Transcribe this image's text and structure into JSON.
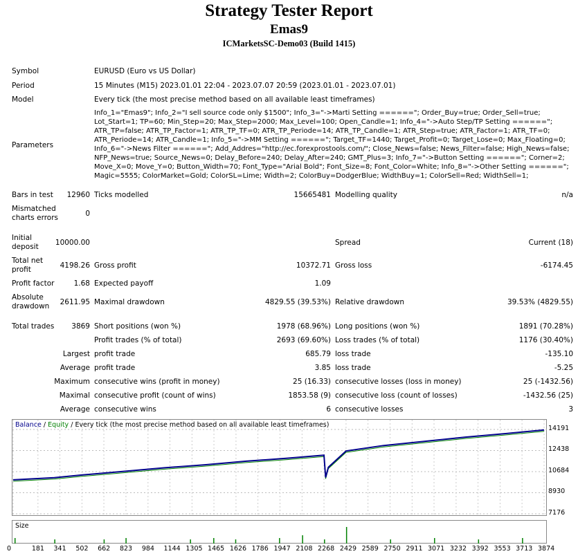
{
  "header": {
    "title": "Strategy Tester Report",
    "expert": "Emas9",
    "server": "ICMarketsSC-Demo03 (Build 1415)"
  },
  "info": {
    "symbol_label": "Symbol",
    "symbol_value": "EURUSD (Euro vs US Dollar)",
    "period_label": "Period",
    "period_value": "15 Minutes (M15) 2023.01.01 22:04 - 2023.07.07 20:59 (2023.01.01 - 2023.07.01)",
    "model_label": "Model",
    "model_value": "Every tick (the most precise method based on all available least timeframes)",
    "parameters_label": "Parameters",
    "parameters_value": "Info_1=\"Emas9\"; Info_2=\"I sell source code only $1500\"; Info_3=\"->Marti Setting ======\"; Order_Buy=true; Order_Sell=true; Lot_Start=1; TP=60; Min_Step=20; Max_Step=2000; Max_Level=100; Open_Candle=1; Info_4=\"->Auto Step/TP Setting ======\"; ATR_TP=false; ATR_TP_Factor=1; ATR_TP_TF=0; ATR_TP_Periode=14; ATR_TP_Candle=1; ATR_Step=true; ATR_Factor=1; ATR_TF=0; ATR_Periode=14; ATR_Candle=1; Info_5=\"->MM Setting ======\"; Target_TF=1440; Target_Profit=0; Target_Lose=0; Max_Floating=0; Info_6=\"->News Filter ======\"; Add_Addres=\"http://ec.forexprostools.com/\"; Close_News=false; News_Filter=false; High_News=false; NFP_News=true; Source_News=0; Delay_Before=240; Delay_After=240; GMT_Plus=3; Info_7=\"->Button Setting ======\"; Corner=2; Move_X=0; Move_Y=0; Button_Width=70; Font_Type=\"Arial Bold\"; Font_Size=8; Font_Color=White; Info_8=\"->Other Setting ======\"; Magic=5555; ColorMarket=Gold; ColorSL=Lime; Width=2; ColorBuy=DodgerBlue; WidthBuy=1; ColorSell=Red; WidthSell=1;"
  },
  "stats": {
    "bars_label": "Bars in test",
    "bars_value": "12960",
    "ticks_label": "Ticks modelled",
    "ticks_value": "15665481",
    "quality_label": "Modelling quality",
    "quality_value": "n/a",
    "mismatch_label": "Mismatched charts errors",
    "mismatch_value": "0",
    "deposit_label": "Initial deposit",
    "deposit_value": "10000.00",
    "spread_label": "Spread",
    "spread_value": "Current (18)",
    "netprofit_label": "Total net profit",
    "netprofit_value": "4198.26",
    "grossprofit_label": "Gross profit",
    "grossprofit_value": "10372.71",
    "grossloss_label": "Gross loss",
    "grossloss_value": "-6174.45",
    "pf_label": "Profit factor",
    "pf_value": "1.68",
    "ep_label": "Expected payoff",
    "ep_value": "1.09",
    "absdd_label": "Absolute drawdown",
    "absdd_value": "2611.95",
    "maxdd_label": "Maximal drawdown",
    "maxdd_value": "4829.55 (39.53%)",
    "reldd_label": "Relative drawdown",
    "reldd_value": "39.53% (4829.55)",
    "trades_label": "Total trades",
    "trades_value": "3869",
    "short_label": "Short positions (won %)",
    "short_value": "1978 (68.96%)",
    "long_label": "Long positions (won %)",
    "long_value": "1891 (70.28%)",
    "ptrades_label": "Profit trades (% of total)",
    "ptrades_value": "2693 (69.60%)",
    "ltrades_label": "Loss trades (% of total)",
    "ltrades_value": "1176 (30.40%)",
    "largest_label": "Largest",
    "largest_profit_label": "profit trade",
    "largest_profit_value": "685.79",
    "largest_loss_label": "loss trade",
    "largest_loss_value": "-135.10",
    "average_label": "Average",
    "average_profit_label": "profit trade",
    "average_profit_value": "3.85",
    "average_loss_label": "loss trade",
    "average_loss_value": "-5.25",
    "maximum_label": "Maximum",
    "max_cw_label": "consecutive wins (profit in money)",
    "max_cw_value": "25 (16.33)",
    "max_cl_label": "consecutive losses (loss in money)",
    "max_cl_value": "25 (-1432.56)",
    "maximal_label": "Maximal",
    "mx_cp_label": "consecutive profit (count of wins)",
    "mx_cp_value": "1853.58 (9)",
    "mx_cl_label": "consecutive loss (count of losses)",
    "mx_cl_value": "-1432.56 (25)",
    "average2_label": "Average",
    "avg_cw_label": "consecutive wins",
    "avg_cw_value": "6",
    "avg_cl_label": "consecutive losses",
    "avg_cl_value": "3"
  },
  "chart_data": {
    "type": "line",
    "legend": {
      "balance": "Balance",
      "sep1": " / ",
      "equity": "Equity",
      "sep2": " / ",
      "model": "Every tick (the most precise method based on all available least timeframes)"
    },
    "size_label": "Size",
    "y_ticks": [
      "14191",
      "12438",
      "10684",
      "8930",
      "7176"
    ],
    "x_ticks": [
      "0",
      "181",
      "341",
      "502",
      "662",
      "823",
      "984",
      "1144",
      "1305",
      "1465",
      "1626",
      "1786",
      "1947",
      "2108",
      "2268",
      "2429",
      "2589",
      "2750",
      "2911",
      "3071",
      "3232",
      "3392",
      "3553",
      "3713",
      "3874"
    ],
    "ylim": [
      7176,
      14191
    ],
    "xlim": [
      0,
      3874
    ],
    "balance": [
      [
        0,
        10000
      ],
      [
        300,
        10180
      ],
      [
        500,
        10400
      ],
      [
        800,
        10700
      ],
      [
        1100,
        11000
      ],
      [
        1400,
        11250
      ],
      [
        1700,
        11550
      ],
      [
        2000,
        11800
      ],
      [
        2268,
        12050
      ],
      [
        2280,
        10200
      ],
      [
        2300,
        11050
      ],
      [
        2429,
        12400
      ],
      [
        2700,
        12850
      ],
      [
        3000,
        13200
      ],
      [
        3300,
        13550
      ],
      [
        3600,
        13850
      ],
      [
        3874,
        14150
      ]
    ],
    "colors": {
      "balance": "#00008b",
      "equity": "#008000",
      "size": "#008000"
    }
  }
}
